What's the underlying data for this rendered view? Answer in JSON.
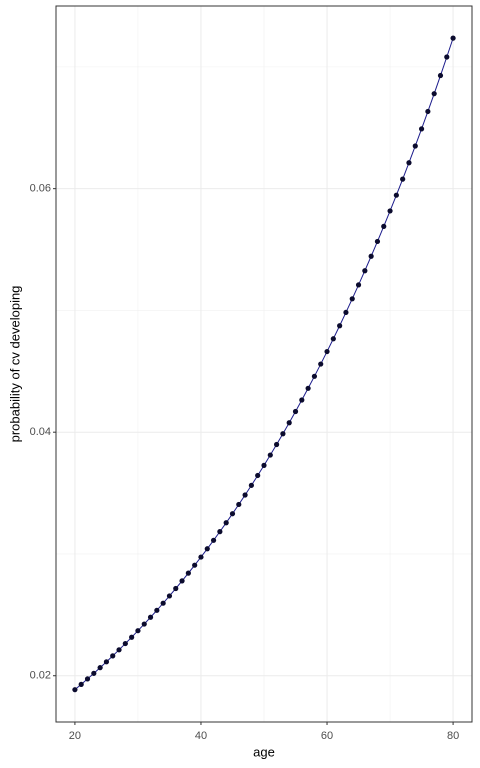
{
  "chart_data": {
    "type": "line",
    "x_label": "age",
    "y_label": "probability of cv developing",
    "x": [
      20,
      21,
      22,
      23,
      24,
      25,
      26,
      27,
      28,
      29,
      30,
      31,
      32,
      33,
      34,
      35,
      36,
      37,
      38,
      39,
      40,
      41,
      42,
      43,
      44,
      45,
      46,
      47,
      48,
      49,
      50,
      51,
      52,
      53,
      54,
      55,
      56,
      57,
      58,
      59,
      60,
      61,
      62,
      63,
      64,
      65,
      66,
      67,
      68,
      69,
      70,
      71,
      72,
      73,
      74,
      75,
      76,
      77,
      78,
      79,
      80
    ],
    "series": [
      {
        "name": "probability",
        "line_color": "#1c1c8c",
        "point_color": "#0b0b2e",
        "values": [
          0.018855,
          0.019291,
          0.019739,
          0.020196,
          0.020663,
          0.021141,
          0.021629,
          0.022128,
          0.02264,
          0.023162,
          0.023697,
          0.024243,
          0.024801,
          0.025372,
          0.025956,
          0.026554,
          0.027164,
          0.027788,
          0.028426,
          0.029077,
          0.029744,
          0.030425,
          0.031121,
          0.031833,
          0.032561,
          0.033305,
          0.034065,
          0.034841,
          0.035635,
          0.036446,
          0.037275,
          0.038123,
          0.038988,
          0.039872,
          0.040776,
          0.041699,
          0.042642,
          0.043605,
          0.044589,
          0.045595,
          0.046622,
          0.047671,
          0.048743,
          0.049837,
          0.050955,
          0.052095,
          0.05326,
          0.054449,
          0.055664,
          0.056904,
          0.058171,
          0.059463,
          0.060782,
          0.062129,
          0.063504,
          0.064907,
          0.066339,
          0.0678,
          0.06929,
          0.070812,
          0.072363
        ]
      }
    ],
    "xlim": [
      17,
      83
    ],
    "xticks": [
      20,
      40,
      60,
      80
    ],
    "minor_xticks": [
      30,
      50,
      70
    ],
    "ylim": [
      0.0162,
      0.075
    ],
    "yticks": [
      0.02,
      0.04,
      0.06
    ],
    "minor_yticks": [
      0.03,
      0.05,
      0.07
    ],
    "grid": true
  }
}
